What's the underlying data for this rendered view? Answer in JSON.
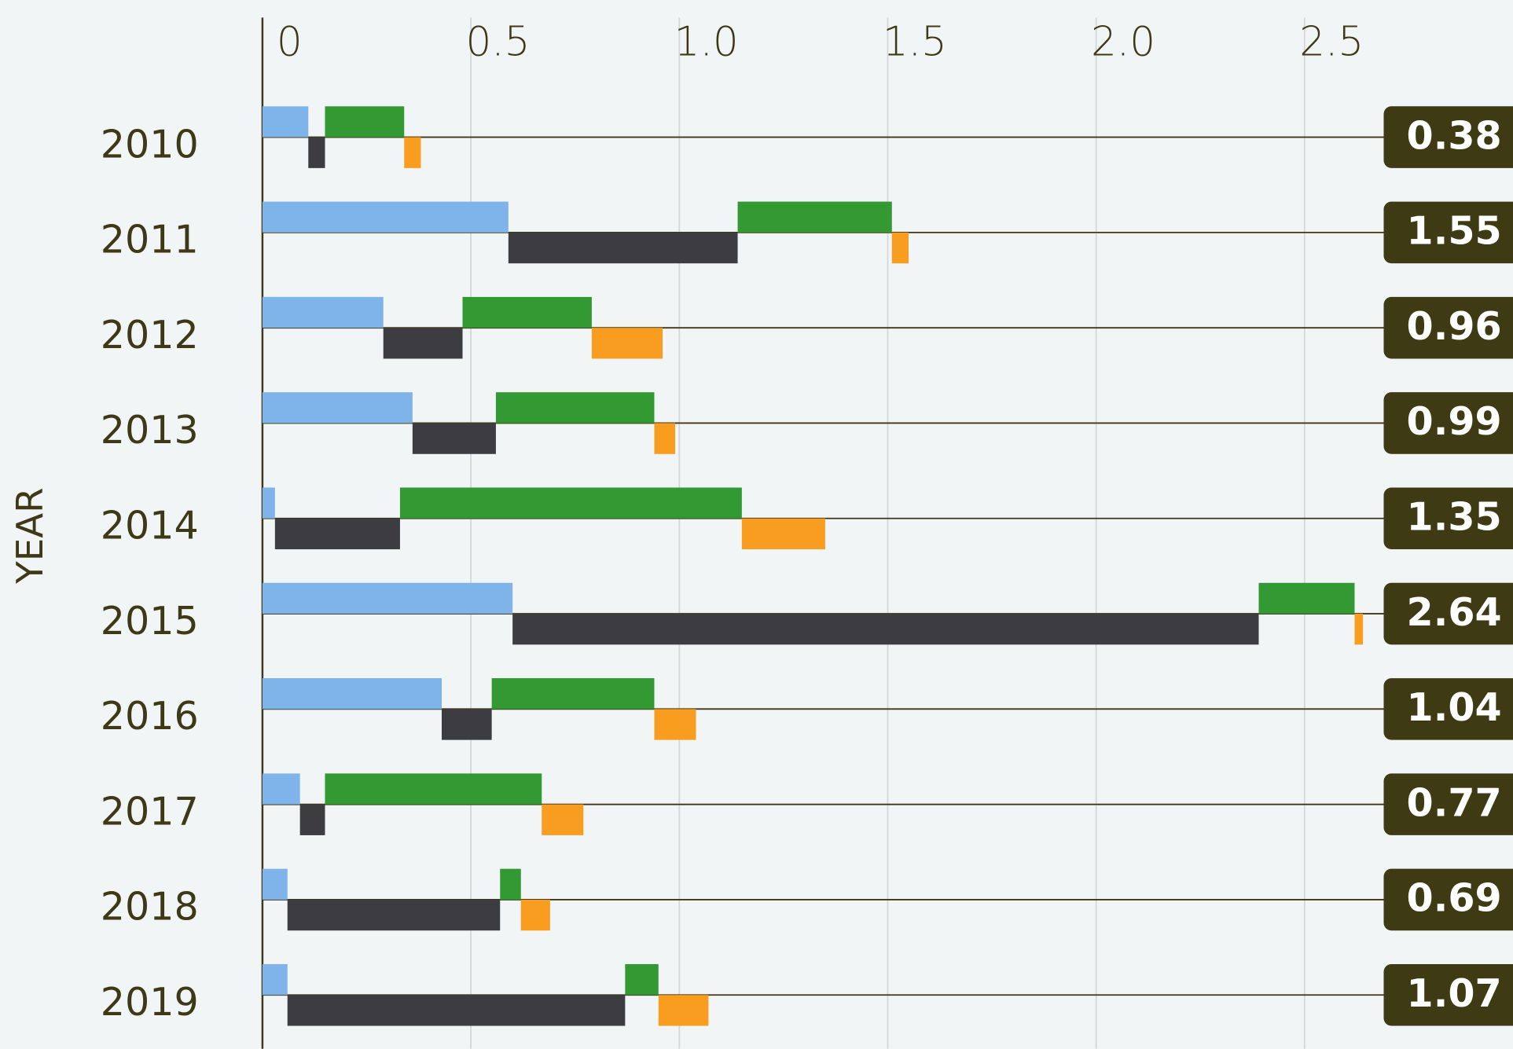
{
  "chart_data": {
    "type": "waterfall-bar",
    "ylabel": "YEAR",
    "categories": [
      "2010",
      "2011",
      "2012",
      "2013",
      "2014",
      "2015",
      "2016",
      "2017",
      "2018",
      "2019"
    ],
    "series": [
      {
        "color": "#7eb4ea",
        "position": "above",
        "values": [
          0.11,
          0.59,
          0.29,
          0.36,
          0.03,
          0.6,
          0.43,
          0.09,
          0.06,
          0.06
        ]
      },
      {
        "color": "#3d3c40",
        "position": "below",
        "values": [
          0.04,
          0.55,
          0.19,
          0.2,
          0.3,
          1.79,
          0.12,
          0.06,
          0.51,
          0.81
        ]
      },
      {
        "color": "#339933",
        "position": "above",
        "values": [
          0.19,
          0.37,
          0.31,
          0.38,
          0.82,
          0.23,
          0.39,
          0.52,
          0.05,
          0.08
        ]
      },
      {
        "color": "#f89d20",
        "position": "below",
        "values": [
          0.04,
          0.04,
          0.17,
          0.05,
          0.2,
          0.02,
          0.1,
          0.1,
          0.07,
          0.12
        ]
      }
    ],
    "totals": [
      0.38,
      1.55,
      0.96,
      0.99,
      1.35,
      2.64,
      1.04,
      0.77,
      0.69,
      1.07
    ],
    "xlim": [
      0,
      3
    ],
    "xticks": [
      0,
      0.5,
      {
        "value": 1,
        "label": "1.0"
      },
      1.5,
      {
        "value": 2,
        "label": "2.0"
      },
      2.5
    ],
    "grid": true
  }
}
